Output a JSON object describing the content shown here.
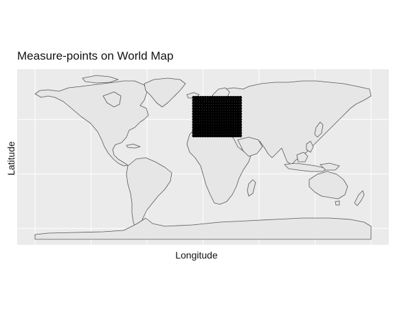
{
  "title": "Measure-points on World Map",
  "x_label": "Longitude",
  "y_label": "Latitude",
  "colors": {
    "panel_background": "#ebebeb",
    "grid": "#ffffff",
    "land_fill": "#e6e6e6",
    "land_border": "#555555",
    "point": "#000000",
    "text": "#111111"
  },
  "map": {
    "projection": "equirectangular",
    "lon_range": [
      -180,
      180
    ],
    "lat_range": [
      -60,
      84
    ],
    "panel_lon_range": [
      -190,
      190
    ],
    "panel_lat_range": [
      -65,
      90
    ],
    "grid_lons": [
      -180,
      -120,
      -60,
      0,
      60,
      120,
      180
    ],
    "grid_lats": [
      -50,
      0,
      50
    ],
    "axis_ticks_shown": false,
    "basemap": "world country borders"
  },
  "measure_points": {
    "description": "regular grid of measurement points",
    "lon_start": -10,
    "lon_end": 40,
    "lon_step": 2.5,
    "lat_start": 35,
    "lat_end": 70,
    "lat_step": 2.5,
    "marker": "filled circle"
  }
}
